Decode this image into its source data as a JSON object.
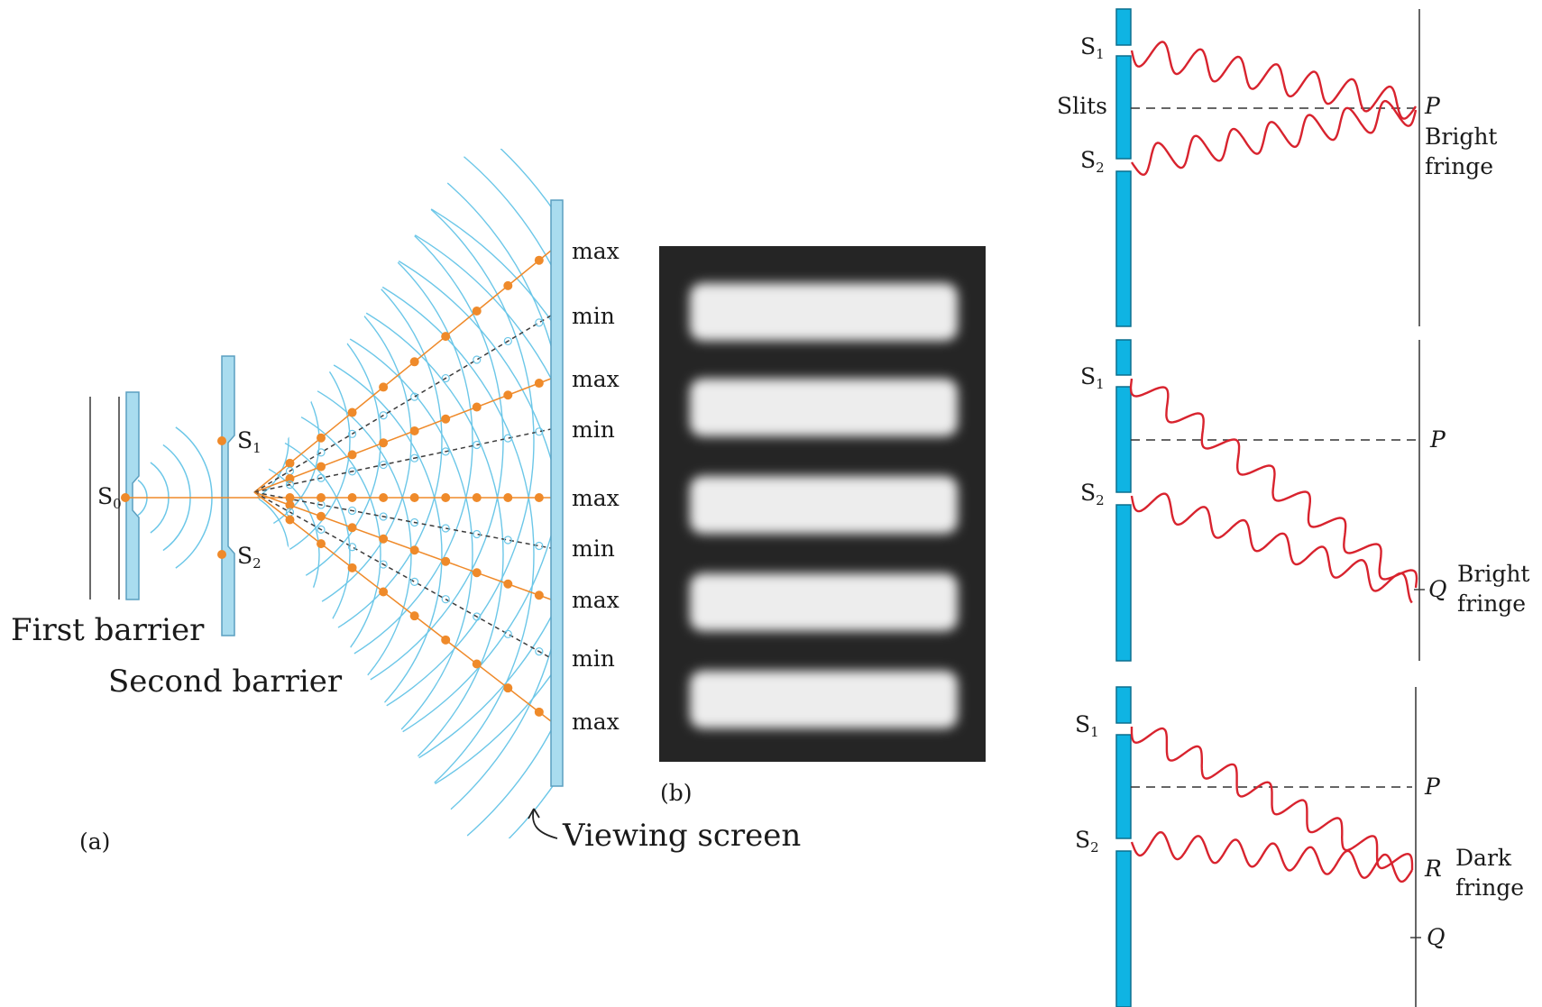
{
  "panel_a": {
    "label": "(a)",
    "first_barrier": "First barrier",
    "second_barrier": "Second barrier",
    "viewing_screen": "Viewing screen",
    "source_letter": "S",
    "source_sub": "0",
    "slit1_letter": "S",
    "slit1_sub": "1",
    "slit2_letter": "S",
    "slit2_sub": "2",
    "screen_labels": [
      "max",
      "min",
      "max",
      "min",
      "max",
      "min",
      "max",
      "min",
      "max"
    ]
  },
  "panel_b": {
    "label": "(b)",
    "fringe_count": 5
  },
  "panel_c": {
    "top": {
      "s1_letter": "S",
      "s1_sub": "1",
      "s2_letter": "S",
      "s2_sub": "2",
      "slits_label": "Slits",
      "point_p": "P",
      "fringe_line1": "Bright",
      "fringe_line2": "fringe"
    },
    "middle": {
      "s1_letter": "S",
      "s1_sub": "1",
      "s2_letter": "S",
      "s2_sub": "2",
      "point_p": "P",
      "point_q": "Q",
      "fringe_line1": "Bright",
      "fringe_line2": "fringe"
    },
    "bottom": {
      "s1_letter": "S",
      "s1_sub": "1",
      "s2_letter": "S",
      "s2_sub": "2",
      "point_p": "P",
      "point_r": "R",
      "point_q": "Q",
      "fringe_line1": "Dark",
      "fringe_line2": "fringe"
    }
  },
  "colors": {
    "wave_blue": "#6cc7e8",
    "barrier_blue": "#a9dcef",
    "slit_blue": "#0fb4e3",
    "orange": "#ef8a2a",
    "wave_red": "#d8232e",
    "photo_bg": "#252525"
  }
}
